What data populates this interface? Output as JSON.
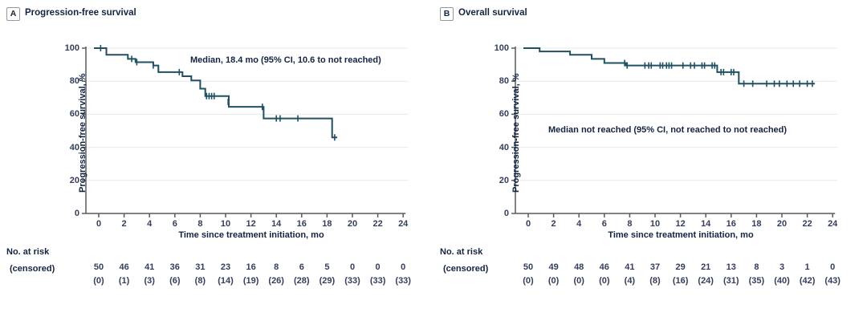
{
  "colors": {
    "curve": "#205062",
    "axis_line": "#595a5c",
    "gridline": "#e8e8e8",
    "heading_text": "#132441",
    "tick_text": "#343e5c",
    "panel_letter_border": "#96999e"
  },
  "chart_data": [
    {
      "type": "line",
      "subtype": "kaplan-meier-step",
      "panel_label": "A",
      "title": "Progression-free survival",
      "xlabel": "Time since treatment initiation, mo",
      "ylabel": "Progression-free survival, %",
      "annotation": "Median, 18.4 mo (95% CI, 10.6 to not reached)",
      "xlim": [
        0,
        24
      ],
      "ylim": [
        0,
        100
      ],
      "xticks": [
        0,
        2,
        4,
        6,
        8,
        10,
        12,
        14,
        16,
        18,
        20,
        22,
        24
      ],
      "yticks": [
        0,
        20,
        40,
        60,
        80,
        100
      ],
      "grid": "horizontal-light",
      "legend": "none",
      "series": [
        {
          "name": "Progression-free survival",
          "steps": [
            [
              0,
              100
            ],
            [
              0.6,
              96
            ],
            [
              2.3,
              93.5
            ],
            [
              2.9,
              91.5
            ],
            [
              4.3,
              89.5
            ],
            [
              4.7,
              85.5
            ],
            [
              6.6,
              83
            ],
            [
              7.3,
              80.5
            ],
            [
              8.0,
              75.5
            ],
            [
              8.4,
              71
            ],
            [
              10.25,
              64.5
            ],
            [
              13.0,
              57.5
            ],
            [
              18.4,
              46
            ]
          ],
          "end_t": 18.8,
          "censors": [
            [
              0.15,
              100
            ],
            [
              2.6,
              93.5
            ],
            [
              3.0,
              91.5
            ],
            [
              4.3,
              89.5
            ],
            [
              4.7,
              87.5
            ],
            [
              6.35,
              85.5
            ],
            [
              8.5,
              71
            ],
            [
              8.7,
              71
            ],
            [
              8.9,
              71
            ],
            [
              9.1,
              71
            ],
            [
              10.2,
              67.5
            ],
            [
              12.9,
              64.5
            ],
            [
              14.0,
              57.5
            ],
            [
              14.3,
              57.5
            ],
            [
              15.7,
              57.5
            ],
            [
              18.6,
              46
            ]
          ]
        }
      ],
      "at_risk_label": "No. at risk",
      "censored_label": "(censored)",
      "at_risk": [
        "50",
        "46",
        "41",
        "36",
        "31",
        "23",
        "16",
        "8",
        "6",
        "5",
        "0",
        "0",
        "0"
      ],
      "censored": [
        "(0)",
        "(1)",
        "(3)",
        "(6)",
        "(8)",
        "(14)",
        "(19)",
        "(26)",
        "(28)",
        "(29)",
        "(33)",
        "(33)",
        "(33)"
      ]
    },
    {
      "type": "line",
      "subtype": "kaplan-meier-step",
      "panel_label": "B",
      "title": "Overall survival",
      "xlabel": "Time since treatment initiation, mo",
      "ylabel": "Progression-free survival, %",
      "annotation": "Median not reached (95% CI, not reached to not reached)",
      "xlim": [
        0,
        24
      ],
      "ylim": [
        0,
        100
      ],
      "xticks": [
        0,
        2,
        4,
        6,
        8,
        10,
        12,
        14,
        16,
        18,
        20,
        22,
        24
      ],
      "yticks": [
        0,
        20,
        40,
        60,
        80,
        100
      ],
      "grid": "horizontal-light",
      "legend": "none",
      "series": [
        {
          "name": "Overall survival",
          "steps": [
            [
              0,
              100
            ],
            [
              0.9,
              98
            ],
            [
              3.3,
              96
            ],
            [
              5.0,
              93.5
            ],
            [
              6.0,
              91
            ],
            [
              7.7,
              89.5
            ],
            [
              14.9,
              85.5
            ],
            [
              16.6,
              78.5
            ]
          ],
          "end_t": 22.6,
          "censors": [
            [
              7.6,
              91
            ],
            [
              7.8,
              89.5
            ],
            [
              9.2,
              89.5
            ],
            [
              9.5,
              89.5
            ],
            [
              9.7,
              89.5
            ],
            [
              10.4,
              89.5
            ],
            [
              10.6,
              89.5
            ],
            [
              10.9,
              89.5
            ],
            [
              11.1,
              89.5
            ],
            [
              11.3,
              89.5
            ],
            [
              12.2,
              89.5
            ],
            [
              12.8,
              89.5
            ],
            [
              13.1,
              89.5
            ],
            [
              13.7,
              89.5
            ],
            [
              13.9,
              89.5
            ],
            [
              14.5,
              89.5
            ],
            [
              14.7,
              89.5
            ],
            [
              15.2,
              85.5
            ],
            [
              15.4,
              85.5
            ],
            [
              16.0,
              85.5
            ],
            [
              16.2,
              85.5
            ],
            [
              17.0,
              78.5
            ],
            [
              17.7,
              78.5
            ],
            [
              18.8,
              78.5
            ],
            [
              19.4,
              78.5
            ],
            [
              19.8,
              78.5
            ],
            [
              20.4,
              78.5
            ],
            [
              20.9,
              78.5
            ],
            [
              21.4,
              78.5
            ],
            [
              22.0,
              78.5
            ],
            [
              22.4,
              78.5
            ]
          ]
        }
      ],
      "at_risk_label": "No. at risk",
      "censored_label": "(censored)",
      "at_risk": [
        "50",
        "49",
        "48",
        "46",
        "41",
        "37",
        "29",
        "21",
        "13",
        "8",
        "3",
        "1",
        "0"
      ],
      "censored": [
        "(0)",
        "(0)",
        "(0)",
        "(0)",
        "(4)",
        "(8)",
        "(16)",
        "(24)",
        "(31)",
        "(35)",
        "(40)",
        "(42)",
        "(43)"
      ]
    }
  ]
}
